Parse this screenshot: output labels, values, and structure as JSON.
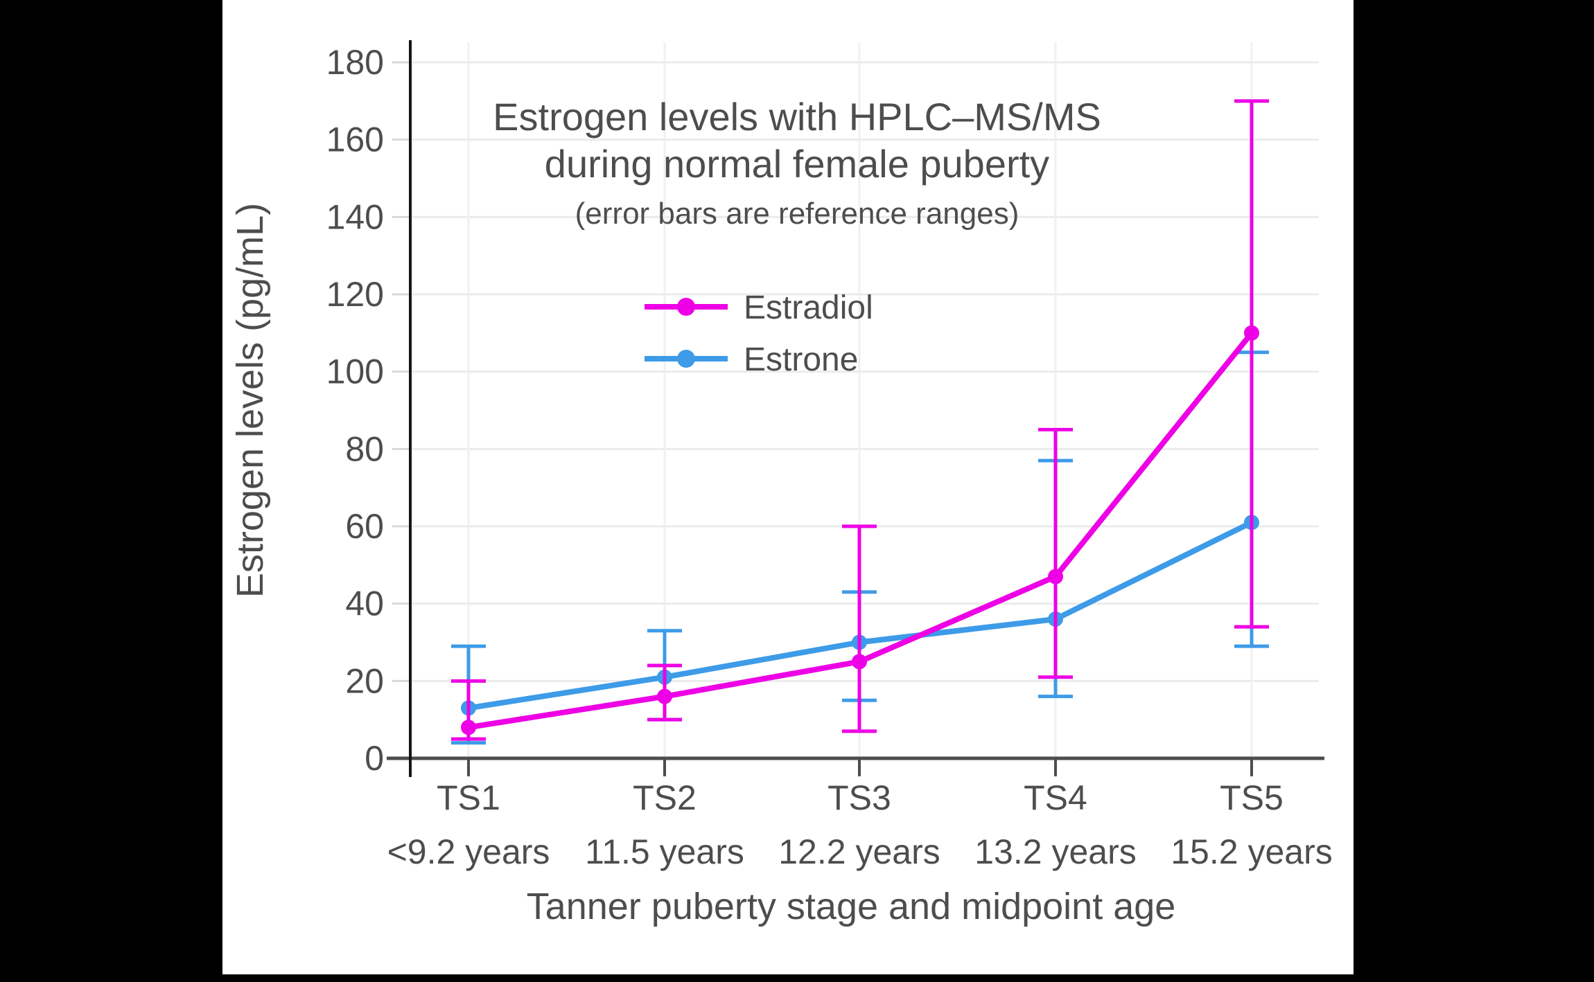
{
  "chart_data": {
    "type": "line",
    "title_line1": "Estrogen levels with HPLC–MS/MS",
    "title_line2": "during normal female puberty",
    "subtitle": "(error bars are reference ranges)",
    "xlabel": "Tanner puberty stage and midpoint age",
    "ylabel": "Estrogen levels (pg/mL)",
    "categories": [
      "TS1",
      "TS2",
      "TS3",
      "TS4",
      "TS5"
    ],
    "category_sublabels": [
      "<9.2 years",
      "11.5 years",
      "12.2 years",
      "13.2 years",
      "15.2 years"
    ],
    "ylim": [
      0,
      180
    ],
    "yticks": [
      0,
      20,
      40,
      60,
      80,
      100,
      120,
      140,
      160,
      180
    ],
    "grid": true,
    "legend_position": "inside-upper-center",
    "legend_order": [
      "Estradiol",
      "Estrone"
    ],
    "series": [
      {
        "name": "Estrone",
        "color": "#3d9be8",
        "values": [
          13,
          21,
          30,
          36,
          61
        ],
        "error_low": [
          4,
          10,
          15,
          16,
          29
        ],
        "error_high": [
          29,
          33,
          43,
          77,
          105
        ]
      },
      {
        "name": "Estradiol",
        "color": "#ed00e5",
        "values": [
          8,
          16,
          25,
          47,
          110
        ],
        "error_low": [
          5,
          10,
          7,
          21,
          34
        ],
        "error_high": [
          20,
          24,
          60,
          85,
          170
        ]
      }
    ]
  },
  "colors": {
    "page_background": "#000000",
    "figure_background": "#ffffff",
    "grid_horizontal": "#ebebeb",
    "grid_vertical": "#f0f0f0",
    "y_spine": "#141414",
    "x_axis": "#4d4d4d",
    "y_tick": "#d8d8d8",
    "text": "#4d4d4d"
  }
}
